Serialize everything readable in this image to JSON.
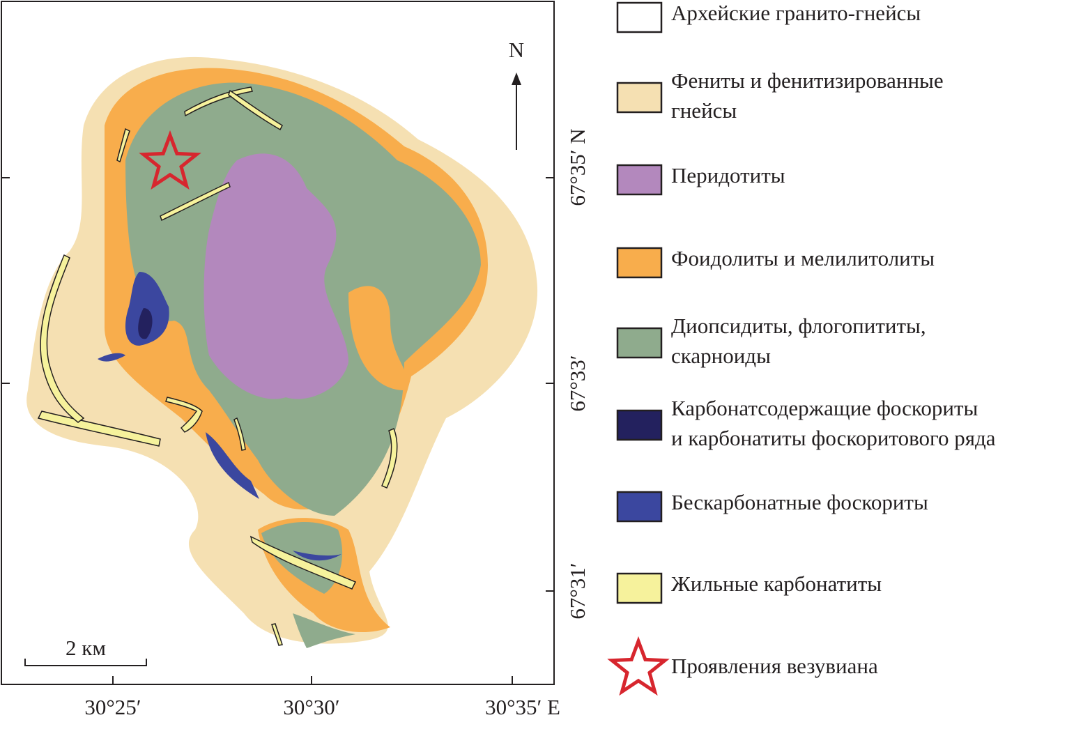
{
  "map": {
    "north": "N",
    "scale_label": "2 км",
    "x_ticks": [
      "30°25′",
      "30°30′",
      "30°35′ E"
    ],
    "y_ticks": [
      "67°35′ N",
      "67°33′",
      "67°31′"
    ]
  },
  "legend": {
    "items": [
      {
        "lines": [
          "Архейские гранито-гнейсы"
        ],
        "color": "#ffffff"
      },
      {
        "lines": [
          "Фениты и фенитизированные",
          "гнейсы"
        ],
        "color": "#f5e0b2"
      },
      {
        "lines": [
          "Перидотиты"
        ],
        "color": "#b388bd"
      },
      {
        "lines": [
          "Фоидолиты и мелилитолиты"
        ],
        "color": "#f8ad4c"
      },
      {
        "lines": [
          "Диопсидиты, флогопититы,",
          "скарноиды"
        ],
        "color": "#8fab8d"
      },
      {
        "lines": [
          "Карбонатсодержащие фоскориты",
          "и карбонатиты фоскоритового ряда"
        ],
        "color": "#23215e"
      },
      {
        "lines": [
          "Бескарбонатные фоскориты"
        ],
        "color": "#3b479f"
      },
      {
        "lines": [
          "Жильные карбонатиты"
        ],
        "color": "#f6f29c"
      },
      {
        "lines": [
          "Проявления везувиана"
        ],
        "color": "#d7262e"
      }
    ]
  }
}
